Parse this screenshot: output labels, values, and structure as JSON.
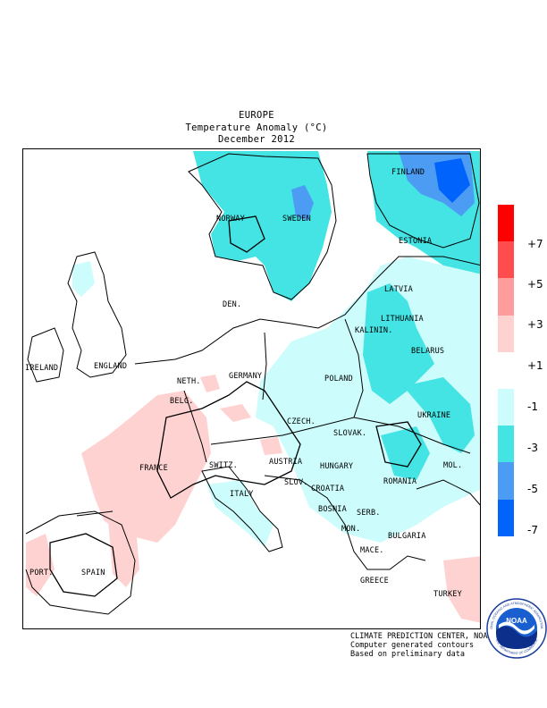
{
  "header": {
    "region": "EUROPE",
    "quantity": "Temperature Anomaly (°C)",
    "period": "December 2012"
  },
  "countries": {
    "finland": "FINLAND",
    "norway": "NORWAY",
    "sweden": "SWEDEN",
    "estonia": "ESTONIA",
    "latvia": "LATVIA",
    "lithuania": "LITHUANIA",
    "kalinin": "KALININ.",
    "belarus": "BELARUS",
    "denmark": "DEN.",
    "ireland": "IRELAND",
    "england": "ENGLAND",
    "netherlands": "NETH.",
    "belgium": "BELG.",
    "germany": "GERMANY",
    "poland": "POLAND",
    "ukraine": "UKRAINE",
    "czech": "CZECH.",
    "slovakia": "SLOVAK.",
    "france": "FRANCE",
    "switzerland": "SWITZ.",
    "austria": "AUSTRIA",
    "hungary": "HUNGARY",
    "romania": "ROMANIA",
    "moldova": "MOL.",
    "slovenia": "SLOV.",
    "croatia": "CROATIA",
    "italy": "ITALY",
    "bosnia": "BOSNIA",
    "serbia": "SERB.",
    "bulgaria": "BULGARIA",
    "montenegro": "MON.",
    "macedonia": "MACE.",
    "portugal": "PORT.",
    "spain": "SPAIN",
    "greece": "GREECE",
    "turkey": "TURKEY"
  },
  "legend": {
    "unit": "°C",
    "ticks": [
      "+7",
      "+5",
      "+3",
      "+1",
      "-1",
      "-3",
      "-5",
      "-7"
    ],
    "colors": [
      "#ff0000",
      "#ff4c4c",
      "#ff9c9c",
      "#ffd2d2",
      "#ffffff",
      "#ccfcfc",
      "#44e4e4",
      "#4c9cf4",
      "#0064fc"
    ]
  },
  "credits": {
    "line1": "CLIMATE PREDICTION CENTER, NOAA",
    "line2": "Computer generated contours",
    "line3": "Based on preliminary data"
  },
  "logo": {
    "icon": "noaa-logo-icon",
    "text": "NOAA",
    "ring_top": "NATIONAL OCEANIC AND ATMOSPHERIC ADMINISTRATION",
    "ring_bottom": "U.S. DEPARTMENT OF COMMERCE"
  }
}
